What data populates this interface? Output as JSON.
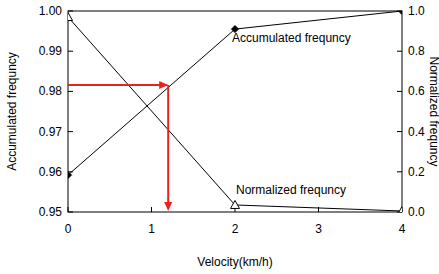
{
  "chart_data": {
    "type": "line",
    "xlabel": "Velocity(km/h)",
    "ylabel": "Accumulated frequncy",
    "y2label": "Normalized frequncy",
    "x": [
      0,
      2,
      4
    ],
    "series": [
      {
        "name": "Accumulated frequncy",
        "color": "#000000",
        "marker": "diamond",
        "values": [
          0.9592,
          0.9955,
          1.0
        ]
      },
      {
        "name": "Normalized frequncy",
        "color": "#000000",
        "marker": "triangle",
        "axis": "y2",
        "values": [
          0.97,
          0.035,
          0.005
        ]
      }
    ],
    "xlim": [
      0,
      4
    ],
    "xticks": [
      0,
      1,
      2,
      3,
      4
    ],
    "ylim": [
      0.95,
      1.0
    ],
    "yticks": [
      {
        "value": 0.95,
        "label": "0.95"
      },
      {
        "value": 0.96,
        "label": "0.96"
      },
      {
        "value": 0.97,
        "label": "0.97"
      },
      {
        "value": 0.98,
        "label": "0.98"
      },
      {
        "value": 0.99,
        "label": "0.99"
      },
      {
        "value": 1.0,
        "label": "1.00"
      }
    ],
    "y2lim": [
      0,
      1.0
    ],
    "y2ticks": [
      {
        "value": 0,
        "label": "0.0"
      },
      {
        "value": 0.2,
        "label": "0.2"
      },
      {
        "value": 0.4,
        "label": "0.4"
      },
      {
        "value": 0.6,
        "label": "0.6"
      },
      {
        "value": 0.8,
        "label": "0.8"
      },
      {
        "value": 1.0,
        "label": "1.0"
      }
    ],
    "grid": false,
    "reading_point": {
      "x": 1.2,
      "y": 0.9816,
      "color": "#e8231f"
    }
  }
}
